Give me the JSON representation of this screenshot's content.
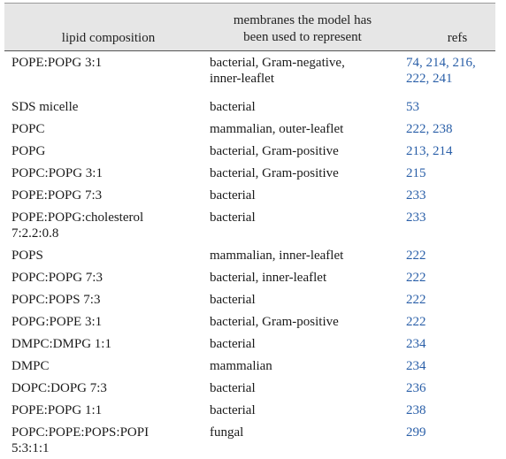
{
  "table": {
    "headers": {
      "composition": "lipid composition",
      "membranes": "membranes the model has\nbeen used to represent",
      "refs": "refs"
    },
    "rows": [
      {
        "composition": "POPE:POPG 3:1",
        "membranes": "bacterial, Gram-negative,\n  inner-leaflet",
        "refs": "74, 214, 216,\n  222, 241"
      },
      {
        "composition": "SDS micelle",
        "membranes": "bacterial",
        "refs": "53"
      },
      {
        "composition": "POPC",
        "membranes": "mammalian, outer-leaflet",
        "refs": "222, 238"
      },
      {
        "composition": "POPG",
        "membranes": "bacterial, Gram-positive",
        "refs": "213, 214"
      },
      {
        "composition": "POPC:POPG 3:1",
        "membranes": "bacterial, Gram-positive",
        "refs": "215"
      },
      {
        "composition": "POPE:POPG 7:3",
        "membranes": "bacterial",
        "refs": "233"
      },
      {
        "composition": "POPE:POPG:cholesterol\n  7:2.2:0.8",
        "membranes": "bacterial",
        "refs": "233"
      },
      {
        "composition": "POPS",
        "membranes": "mammalian, inner-leaflet",
        "refs": "222"
      },
      {
        "composition": "POPC:POPG 7:3",
        "membranes": "bacterial, inner-leaflet",
        "refs": "222"
      },
      {
        "composition": "POPC:POPS 7:3",
        "membranes": "bacterial",
        "refs": "222"
      },
      {
        "composition": "POPG:POPE 3:1",
        "membranes": "bacterial, Gram-positive",
        "refs": "222"
      },
      {
        "composition": "DMPC:DMPG 1:1",
        "membranes": "bacterial",
        "refs": "234"
      },
      {
        "composition": "DMPC",
        "membranes": "mammalian",
        "refs": "234"
      },
      {
        "composition": "DOPC:DOPG 7:3",
        "membranes": "bacterial",
        "refs": "236"
      },
      {
        "composition": "POPE:POPG 1:1",
        "membranes": "bacterial",
        "refs": "238"
      },
      {
        "composition": "POPC:POPE:POPS:POPI\n  5:3:1:1",
        "membranes": "fungal",
        "refs": "299"
      }
    ]
  }
}
